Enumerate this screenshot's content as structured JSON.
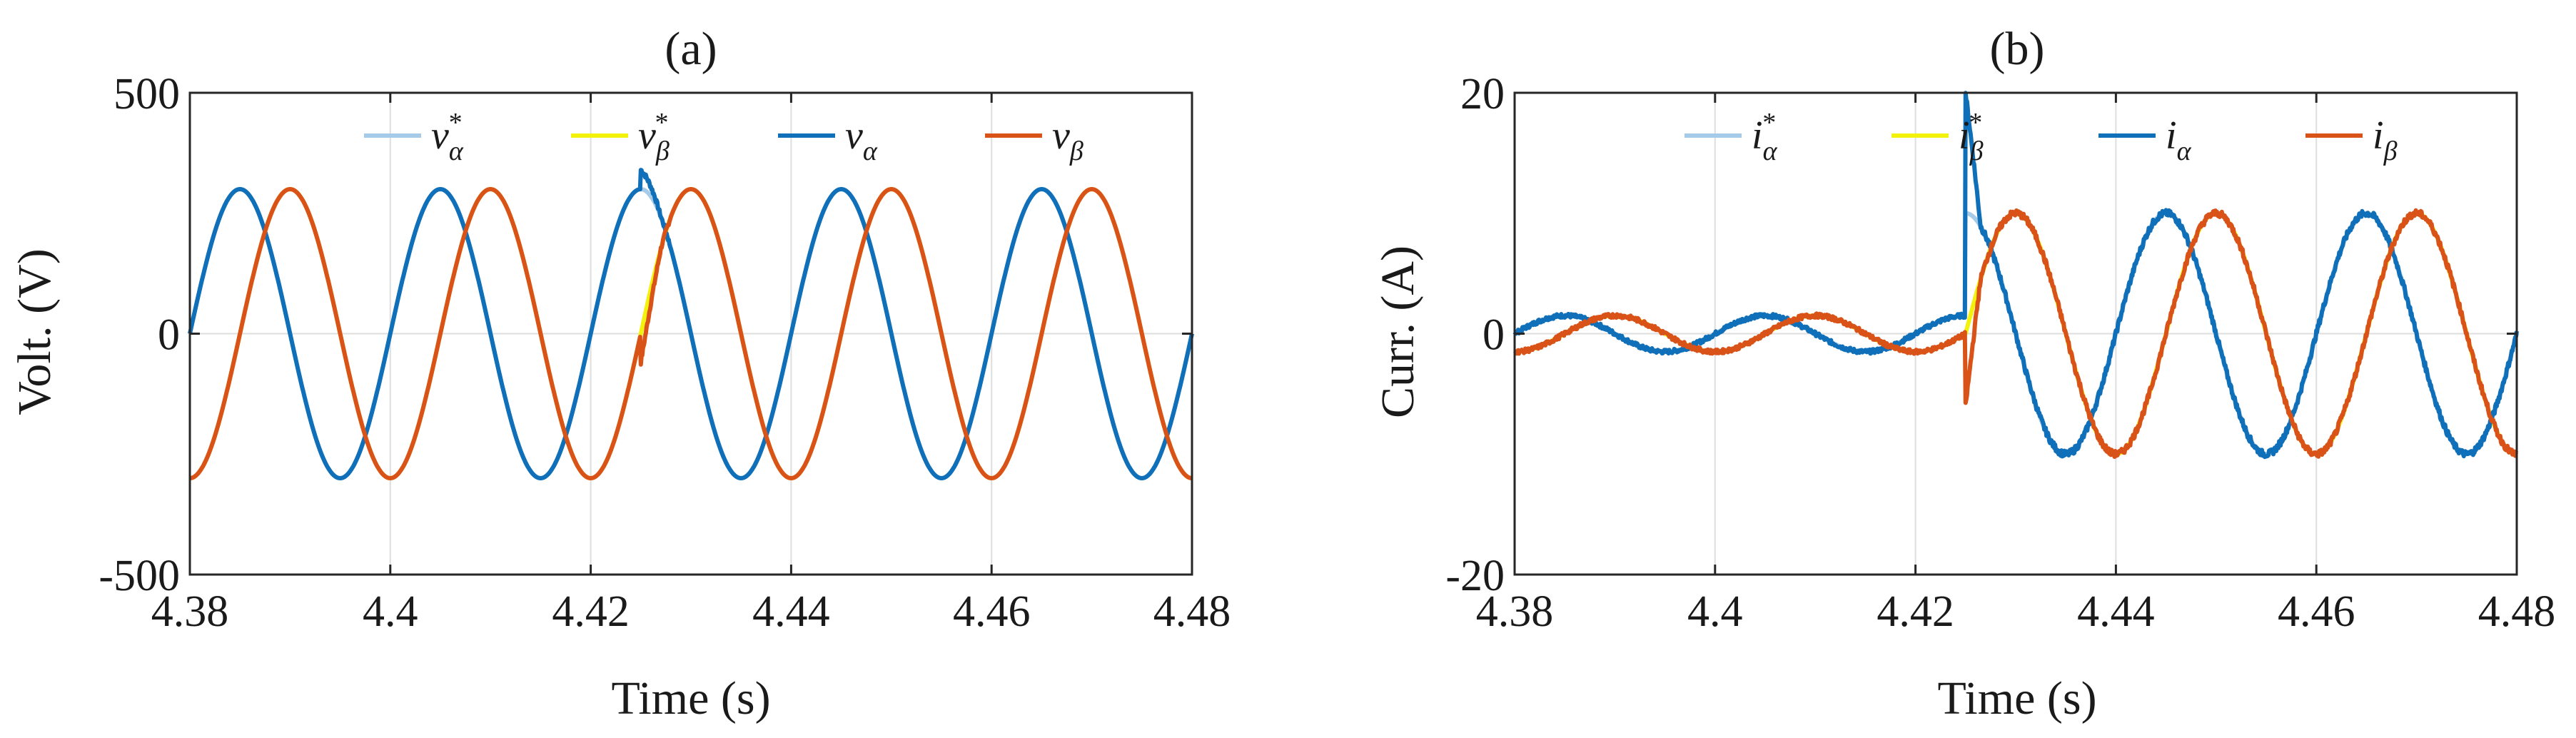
{
  "chart_data": [
    {
      "type": "line",
      "title": "(a)",
      "xlabel": "Time (s)",
      "ylabel": "Volt. (V)",
      "xlim": [
        4.38,
        4.48
      ],
      "ylim": [
        -500,
        500
      ],
      "xticks": [
        4.38,
        4.4,
        4.42,
        4.44,
        4.46,
        4.48
      ],
      "xtick_labels": [
        "4.38",
        "4.4",
        "4.42",
        "4.44",
        "4.46",
        "4.48"
      ],
      "yticks": [
        -500,
        0,
        500
      ],
      "ytick_labels": [
        "-500",
        "0",
        "500"
      ],
      "grid": true,
      "legend_position": "top-right",
      "frequency_hz": 50,
      "series": [
        {
          "name": "v*",
          "sub": "α",
          "star": true,
          "color": "#a6cbe8",
          "amplitude": 300,
          "phase_deg": 0,
          "disturbance_time": null
        },
        {
          "name": "v*",
          "sub": "β",
          "star": true,
          "color": "#f2f20d",
          "amplitude": 300,
          "phase_deg": -90,
          "disturbance_time": null
        },
        {
          "name": "v",
          "sub": "α",
          "star": false,
          "color": "#0f6fb8",
          "amplitude": 300,
          "phase_deg": 0,
          "disturbance_time": 4.425
        },
        {
          "name": "v",
          "sub": "β",
          "star": false,
          "color": "#d95319",
          "amplitude": 300,
          "phase_deg": -90,
          "disturbance_time": 4.425
        }
      ]
    },
    {
      "type": "line",
      "title": "(b)",
      "xlabel": "Time (s)",
      "ylabel": "Curr. (A)",
      "xlim": [
        4.38,
        4.48
      ],
      "ylim": [
        -20,
        20
      ],
      "xticks": [
        4.38,
        4.4,
        4.42,
        4.44,
        4.46,
        4.48
      ],
      "xtick_labels": [
        "4.38",
        "4.4",
        "4.42",
        "4.44",
        "4.46",
        "4.48"
      ],
      "yticks": [
        -20,
        0,
        20
      ],
      "ytick_labels": [
        "-20",
        "0",
        "20"
      ],
      "grid": true,
      "legend_position": "top-right",
      "frequency_hz": 50,
      "step_time": 4.425,
      "amplitude_before": 1.5,
      "amplitude_after": 10,
      "series": [
        {
          "name": "i*",
          "sub": "α",
          "star": true,
          "color": "#a6cbe8",
          "phase_deg": 0
        },
        {
          "name": "i*",
          "sub": "β",
          "star": true,
          "color": "#f2f20d",
          "phase_deg": -90
        },
        {
          "name": "i",
          "sub": "α",
          "star": false,
          "color": "#0f6fb8",
          "phase_deg": 0
        },
        {
          "name": "i",
          "sub": "β",
          "star": false,
          "color": "#d95319",
          "phase_deg": -90
        }
      ]
    }
  ]
}
